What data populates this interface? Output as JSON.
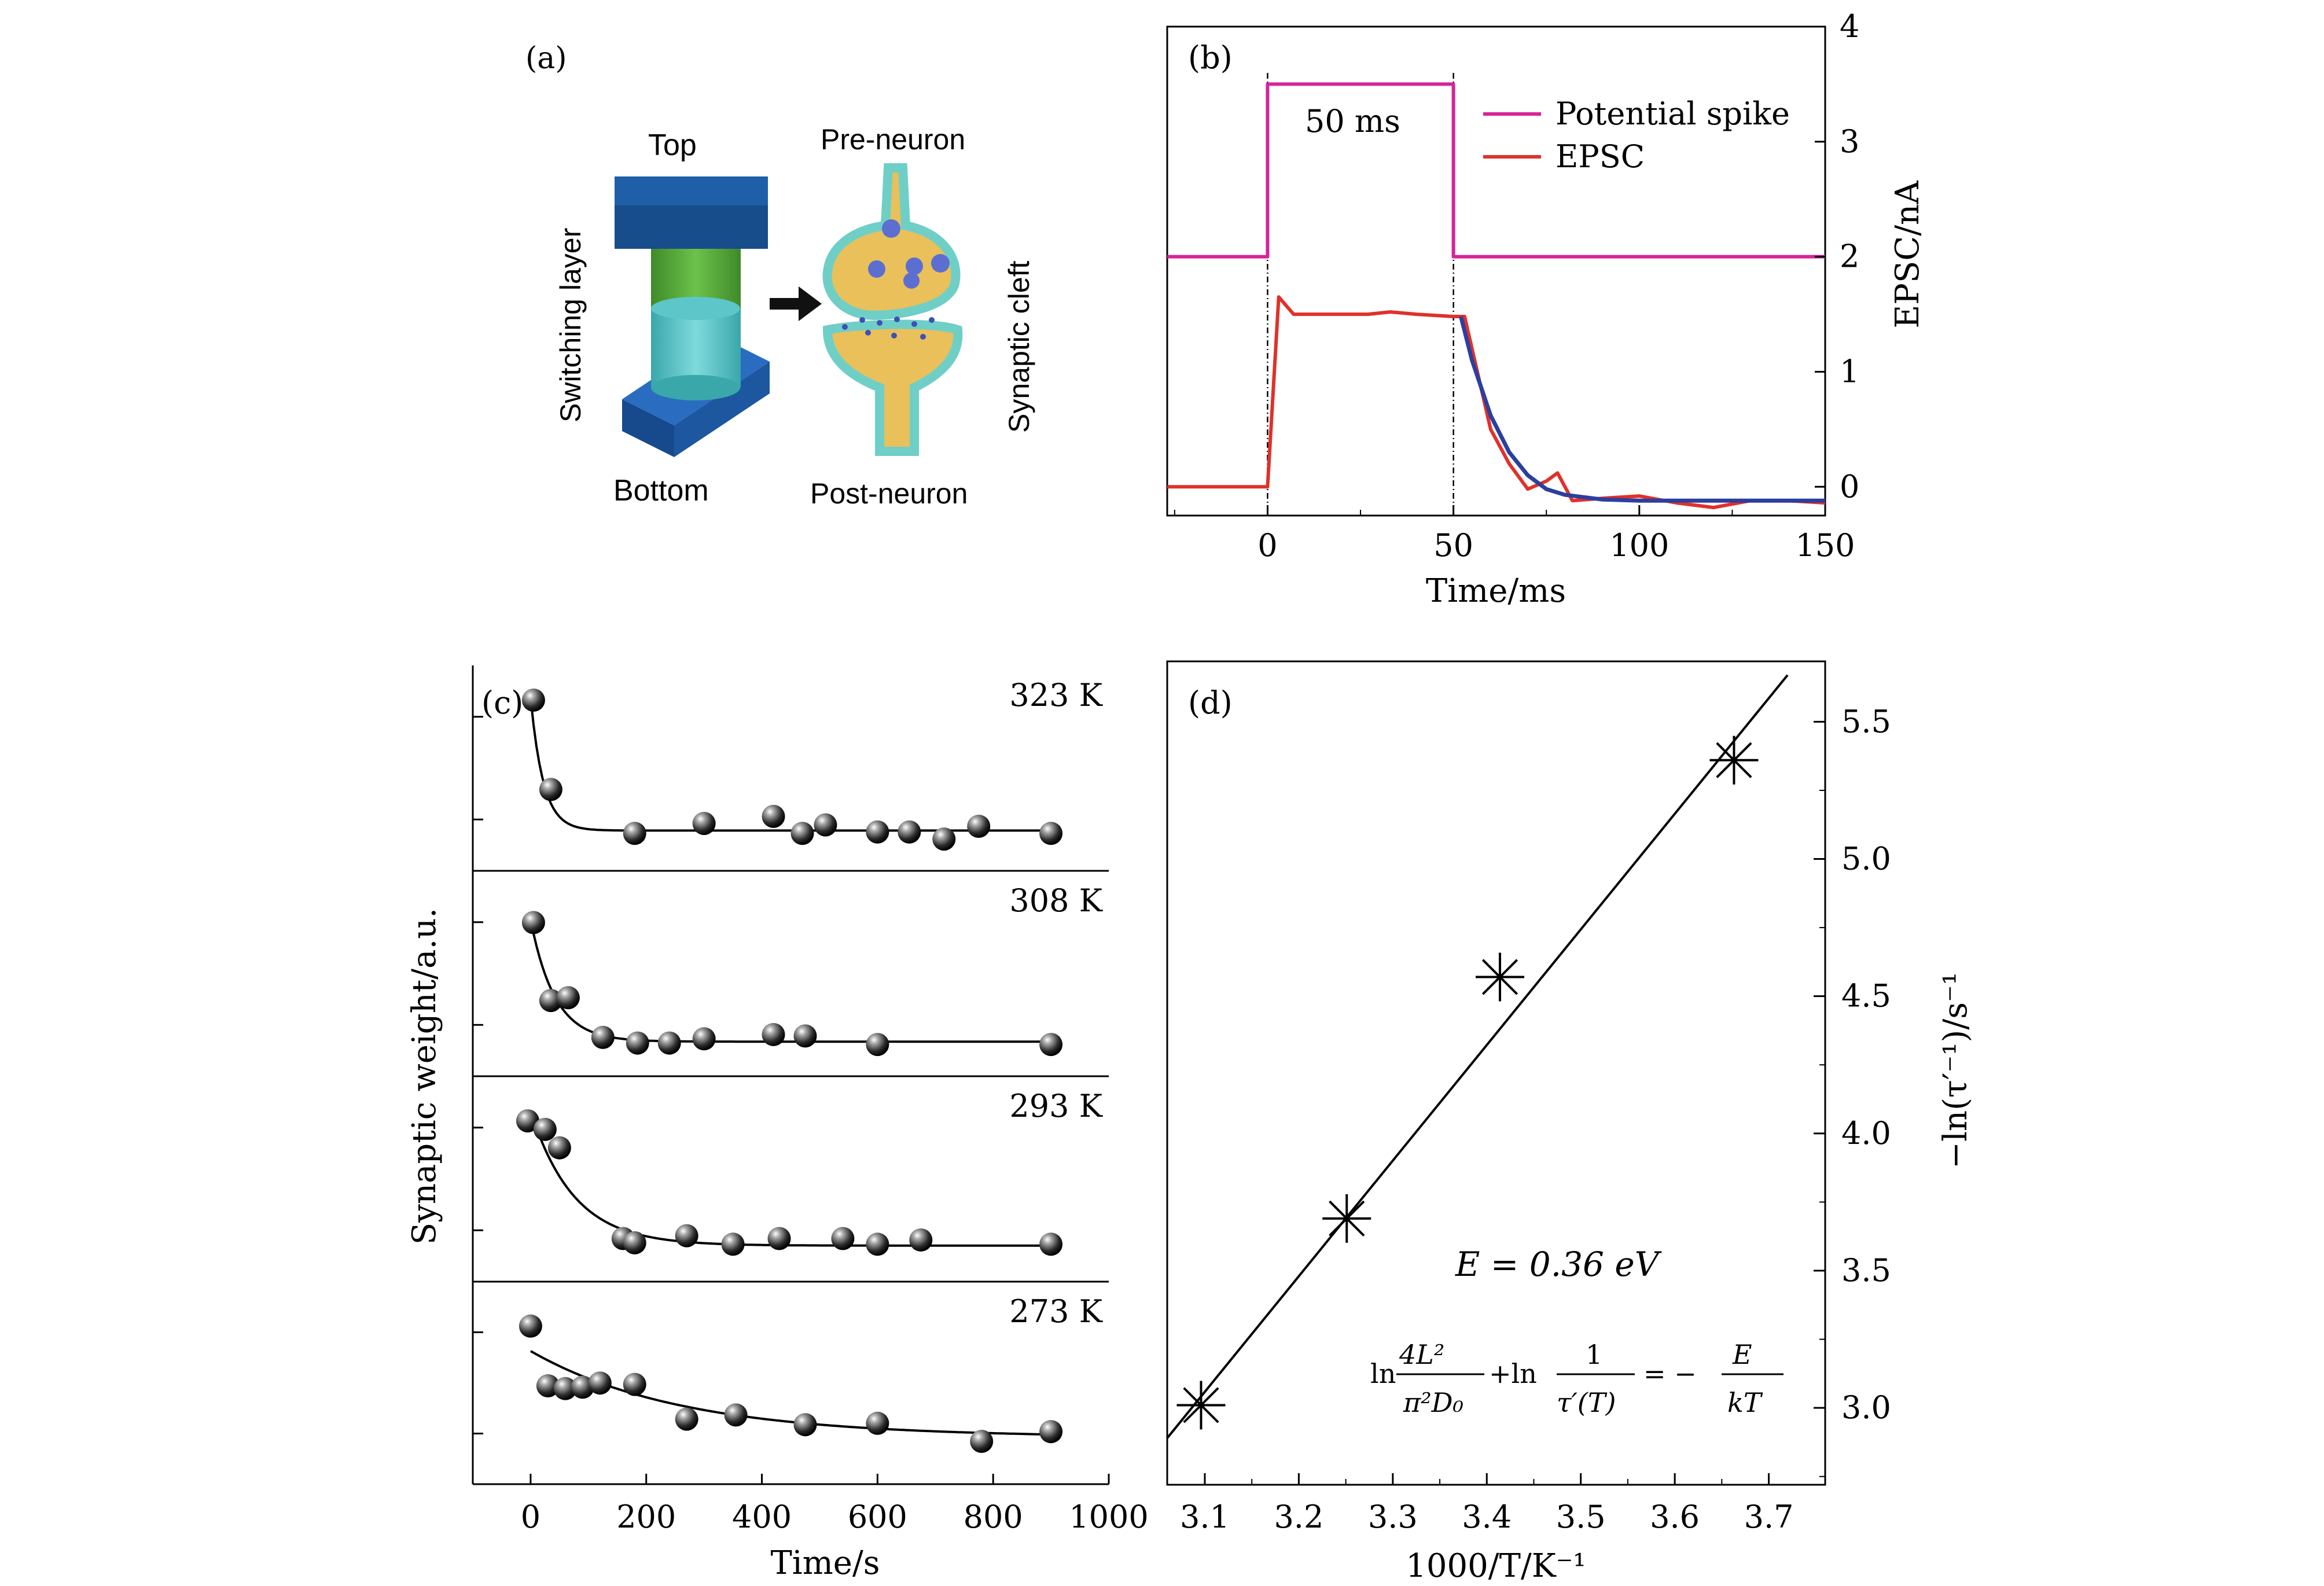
{
  "panel_a": {
    "label": "(a)",
    "top": "Top",
    "bottom": "Bottom",
    "switching_layer": "Switching layer",
    "pre_neuron": "Pre-neuron",
    "post_neuron": "Post-neuron",
    "synaptic_cleft": "Synaptic cleft",
    "colors": {
      "electrode": "#1f5fa8",
      "upper_layer": "#5aa83c",
      "lower_layer": "#5cc6c9",
      "neuron_outline": "#6fcfc7",
      "neuron_fill": "#e9c05a",
      "vesicle": "#5c6fd1"
    }
  },
  "chart_data": [
    {
      "id": "b",
      "type": "line",
      "label": "(b)",
      "xlabel": "Time/ms",
      "ylabel": "EPSC/nA",
      "xlim": [
        -27,
        150
      ],
      "ylim": [
        -0.25,
        4
      ],
      "xticks": [
        0,
        50,
        100,
        150
      ],
      "yticks": [
        0,
        1,
        2,
        3,
        4
      ],
      "annotation": "50 ms",
      "legend": "top-right",
      "series": [
        {
          "name": "Potential spike",
          "color": "#d6249a",
          "x": [
            -27,
            0,
            0,
            50,
            50,
            150
          ],
          "y": [
            2,
            2,
            3.5,
            3.5,
            2,
            2
          ]
        },
        {
          "name": "EPSC",
          "color": "#e0312a",
          "x": [
            -27,
            0,
            3,
            7,
            12,
            20,
            27,
            33,
            40,
            50,
            53,
            60,
            65,
            70,
            75,
            78,
            82,
            90,
            100,
            110,
            120,
            130,
            140,
            150
          ],
          "y": [
            0,
            0,
            1.65,
            1.5,
            1.5,
            1.5,
            1.5,
            1.52,
            1.5,
            1.48,
            1.48,
            0.5,
            0.2,
            -0.02,
            0.05,
            0.12,
            -0.12,
            -0.1,
            -0.08,
            -0.14,
            -0.18,
            -0.12,
            -0.12,
            -0.14
          ]
        },
        {
          "x": [
            52,
            55,
            60,
            65,
            70,
            75,
            80,
            90,
            100,
            110,
            120,
            130,
            140,
            150
          ],
          "y": [
            1.48,
            1.1,
            0.62,
            0.3,
            0.1,
            -0.02,
            -0.07,
            -0.11,
            -0.12,
            -0.12,
            -0.12,
            -0.12,
            -0.12,
            -0.12
          ],
          "color": "#2b3f9e"
        }
      ]
    },
    {
      "id": "c",
      "type": "scatter",
      "label": "(c)",
      "xlabel": "Time/s",
      "ylabel": "Synaptic weight/a.u.",
      "xlim": [
        -100,
        1000
      ],
      "xticks": [
        0,
        200,
        400,
        600,
        800,
        1000
      ],
      "series": [
        {
          "name": "323 K",
          "points": [
            [
              5,
              1.0
            ],
            [
              35,
              0.37
            ],
            [
              180,
              0.06
            ],
            [
              300,
              0.13
            ],
            [
              420,
              0.18
            ],
            [
              470,
              0.06
            ],
            [
              510,
              0.12
            ],
            [
              600,
              0.07
            ],
            [
              655,
              0.07
            ],
            [
              715,
              0.02
            ],
            [
              775,
              0.11
            ],
            [
              900,
              0.06
            ]
          ],
          "fit": {
            "y0": 0.08,
            "a": 0.94,
            "tau": 22
          }
        },
        {
          "name": "308 K",
          "points": [
            [
              5,
              0.88
            ],
            [
              35,
              0.33
            ],
            [
              65,
              0.35
            ],
            [
              125,
              0.07
            ],
            [
              185,
              0.03
            ],
            [
              240,
              0.03
            ],
            [
              300,
              0.06
            ],
            [
              420,
              0.09
            ],
            [
              475,
              0.08
            ],
            [
              600,
              0.02
            ],
            [
              900,
              0.02
            ]
          ],
          "fit": {
            "y0": 0.04,
            "a": 0.86,
            "tau": 42
          }
        },
        {
          "name": "293 K",
          "points": [
            [
              -5,
              0.93
            ],
            [
              25,
              0.87
            ],
            [
              50,
              0.74
            ],
            [
              160,
              0.1
            ],
            [
              180,
              0.07
            ],
            [
              270,
              0.12
            ],
            [
              350,
              0.06
            ],
            [
              430,
              0.1
            ],
            [
              540,
              0.1
            ],
            [
              600,
              0.06
            ],
            [
              675,
              0.09
            ],
            [
              900,
              0.06
            ]
          ],
          "fit": {
            "y0": 0.05,
            "a": 0.95,
            "tau": 75
          }
        },
        {
          "name": "273 K",
          "points": [
            [
              0,
              0.93
            ],
            [
              30,
              0.5
            ],
            [
              60,
              0.48
            ],
            [
              90,
              0.49
            ],
            [
              120,
              0.52
            ],
            [
              180,
              0.51
            ],
            [
              270,
              0.26
            ],
            [
              355,
              0.29
            ],
            [
              475,
              0.22
            ],
            [
              600,
              0.23
            ],
            [
              780,
              0.1
            ],
            [
              900,
              0.17
            ]
          ],
          "fit": {
            "y0": 0.13,
            "a": 0.62,
            "tau": 260,
            "start": 0
          }
        }
      ]
    },
    {
      "id": "d",
      "type": "scatter",
      "label": "(d)",
      "xlabel": "1000/T/K⁻¹",
      "ylabel": "−ln(τ′⁻¹)/s⁻¹",
      "xlim": [
        3.06,
        3.76
      ],
      "ylim": [
        2.72,
        5.72
      ],
      "xticks": [
        3.1,
        3.2,
        3.3,
        3.4,
        3.5,
        3.6,
        3.7
      ],
      "yticks": [
        3.0,
        3.5,
        4.0,
        4.5,
        5.0,
        5.5
      ],
      "annotation": "E = 0.36 eV",
      "points": [
        [
          3.096,
          3.01
        ],
        [
          3.251,
          3.69
        ],
        [
          3.414,
          4.57
        ],
        [
          3.663,
          5.36
        ]
      ],
      "fit": {
        "x": [
          3.06,
          3.72
        ],
        "y": [
          2.89,
          5.67
        ]
      }
    }
  ],
  "equation": {
    "ln1": "ln",
    "num1": "4L²",
    "den1": "π²D₀",
    "plus_ln": "+ln",
    "num2": "1",
    "den2": "τ′(T)",
    "eq": "= −",
    "num3": "E",
    "den3": "kT"
  }
}
